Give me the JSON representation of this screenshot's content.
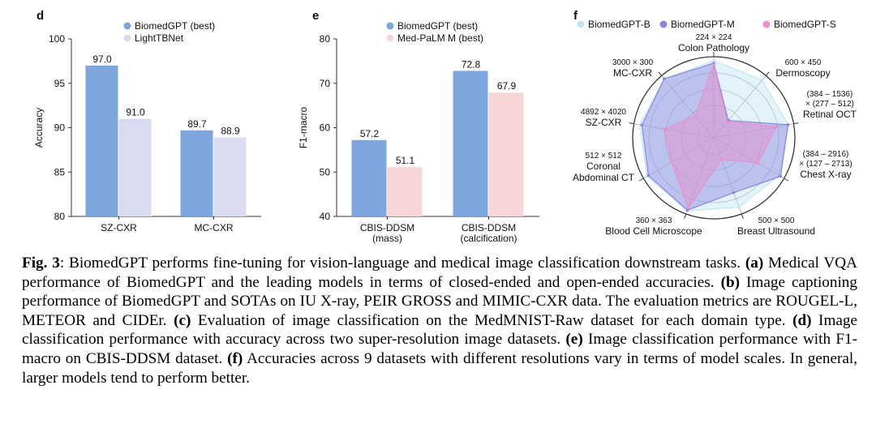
{
  "panels": {
    "d": {
      "panel_label": "d",
      "chart_data": {
        "type": "bar",
        "ylabel": "Accuracy",
        "ylim": [
          80,
          100
        ],
        "yticks": [
          "80",
          "85",
          "90",
          "95",
          "100"
        ],
        "categories": [
          "SZ-CXR",
          "MC-CXR"
        ],
        "series": [
          {
            "name": "BiomedGPT (best)",
            "color": "#7ba6de",
            "values": [
              97.0,
              89.7
            ],
            "labels": [
              "97.0",
              "89.7"
            ]
          },
          {
            "name": "LightTBNet",
            "color": "#d9dcf1",
            "values": [
              91.0,
              88.9
            ],
            "labels": [
              "91.0",
              "88.9"
            ]
          }
        ]
      }
    },
    "e": {
      "panel_label": "e",
      "chart_data": {
        "type": "bar",
        "ylabel": "F1-macro",
        "ylim": [
          40,
          80
        ],
        "yticks": [
          "40",
          "50",
          "60",
          "70",
          "80"
        ],
        "categories": [
          "CBIS-DDSM\n(mass)",
          "CBIS-DDSM\n(calcification)"
        ],
        "series": [
          {
            "name": "BiomedGPT (best)",
            "color": "#7ba6de",
            "values": [
              57.2,
              72.8
            ],
            "labels": [
              "57.2",
              "72.8"
            ]
          },
          {
            "name": "Med-PaLM M (best)",
            "color": "#f6d5d6",
            "values": [
              51.1,
              67.9
            ],
            "labels": [
              "51.1",
              "67.9"
            ]
          }
        ]
      }
    },
    "f": {
      "panel_label": "f",
      "chart_data": {
        "type": "radar",
        "axes": [
          {
            "resolution": "224 × 224",
            "name": "Colon Pathology"
          },
          {
            "resolution": "600 × 450",
            "name": "Dermoscopy"
          },
          {
            "resolution": "(384 – 1536)\n× (277 – 512)",
            "name": "Retinal OCT"
          },
          {
            "resolution": "(384 – 2916)\n× (127 – 2713)",
            "name": "Chest X-ray"
          },
          {
            "resolution": "500 × 500",
            "name": "Breast Ultrasound"
          },
          {
            "resolution": "360 × 363",
            "name": "Blood Cell Microscope"
          },
          {
            "resolution": "512 × 512",
            "name": "Coronal\nAbdominal CT"
          },
          {
            "resolution": "4892 × 4020",
            "name": "SZ-CXR"
          },
          {
            "resolution": "3000 × 300",
            "name": "MC-CXR"
          }
        ],
        "series": [
          {
            "name": "BiomedGPT-B",
            "color": "#bfe6f2",
            "values": [
              0.95,
              0.93,
              0.93,
              0.93,
              0.91,
              0.96,
              0.95,
              0.93,
              0.95
            ]
          },
          {
            "name": "BiomedGPT-M",
            "color": "#8c84e0",
            "values": [
              0.92,
              0.28,
              0.93,
              0.95,
              0.72,
              0.95,
              0.93,
              0.9,
              0.95
            ]
          },
          {
            "name": "BiomedGPT-S",
            "color": "#ec8fc9",
            "values": [
              0.9,
              0.26,
              0.78,
              0.63,
              0.28,
              0.92,
              0.6,
              0.62,
              0.36
            ]
          }
        ]
      }
    }
  },
  "caption": {
    "fig_label": "Fig. 3",
    "intro": ": BiomedGPT performs fine-tuning for vision-language and medical image classification downstream tasks. ",
    "parts": [
      {
        "label": "(a)",
        "text": " Medical VQA performance of BiomedGPT and the leading models in terms of closed-ended and open-ended accuracies. "
      },
      {
        "label": "(b)",
        "text": " Image captioning performance of BiomedGPT and SOTAs on IU X-ray, PEIR GROSS and MIMIC-CXR data. The evaluation metrics are ROUGEL-L, METEOR and CIDEr. "
      },
      {
        "label": "(c)",
        "text": " Evaluation of image classification on the MedMNIST-Raw dataset for each domain type. "
      },
      {
        "label": "(d)",
        "text": " Image classification performance with accuracy across two super-resolution image datasets. "
      },
      {
        "label": "(e)",
        "text": " Image classification performance with F1-macro on CBIS-DDSM dataset. "
      },
      {
        "label": "(f)",
        "text": " Accuracies across 9 datasets with different resolutions vary in terms of model scales. In general, larger models tend to perform better."
      }
    ]
  }
}
